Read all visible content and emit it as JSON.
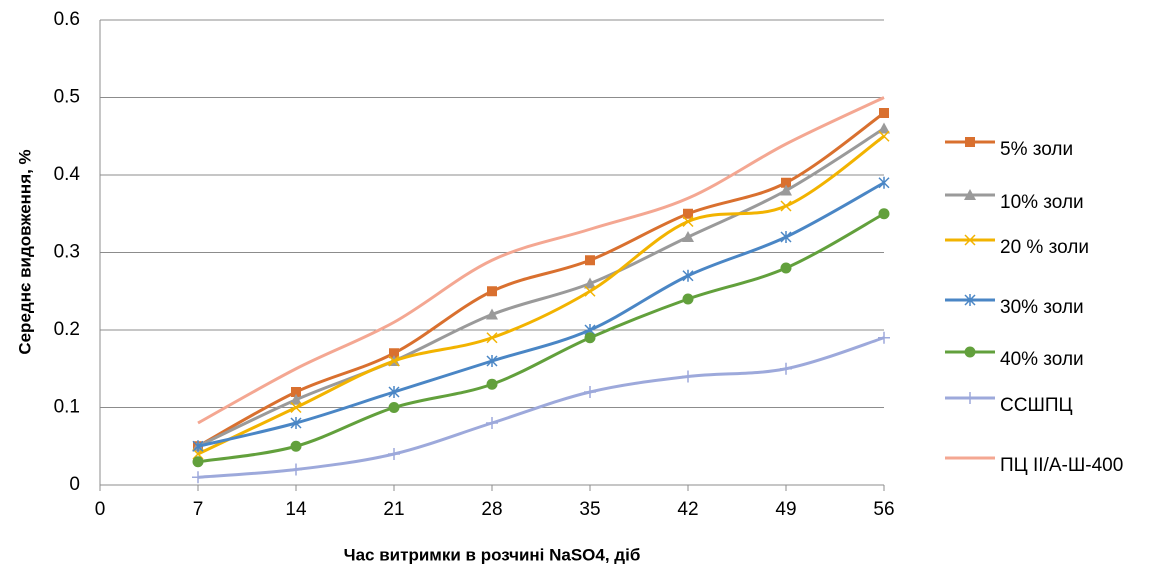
{
  "chart_data": {
    "type": "line",
    "x_label": "Час витримки в розчині NaSO4, діб",
    "y_label": "Середнє видовження, %",
    "x": [
      7,
      14,
      21,
      28,
      35,
      42,
      49,
      56
    ],
    "xlim": [
      0,
      56
    ],
    "xticks": [
      0,
      7,
      14,
      21,
      28,
      35,
      42,
      49,
      56
    ],
    "ylim": [
      0,
      0.6
    ],
    "yticks": [
      0,
      0.1,
      0.2,
      0.3,
      0.4,
      0.5,
      0.6
    ],
    "grid": true,
    "smooth": true,
    "legend": "right",
    "series": [
      {
        "name": "5% золи",
        "color": "#d9702f",
        "marker": "square",
        "values": [
          0.05,
          0.12,
          0.17,
          0.25,
          0.29,
          0.35,
          0.39,
          0.48
        ]
      },
      {
        "name": "10% золи",
        "color": "#9a9a9a",
        "marker": "triangle",
        "values": [
          0.05,
          0.11,
          0.16,
          0.22,
          0.26,
          0.32,
          0.38,
          0.46
        ]
      },
      {
        "name": "20 % золи",
        "color": "#f2b300",
        "marker": "x",
        "values": [
          0.04,
          0.1,
          0.16,
          0.19,
          0.25,
          0.34,
          0.36,
          0.45
        ]
      },
      {
        "name": "30% золи",
        "color": "#4a86c5",
        "marker": "asterisk",
        "values": [
          0.05,
          0.08,
          0.12,
          0.16,
          0.2,
          0.27,
          0.32,
          0.39
        ]
      },
      {
        "name": "40% золи",
        "color": "#62a03c",
        "marker": "circle",
        "values": [
          0.03,
          0.05,
          0.1,
          0.13,
          0.19,
          0.24,
          0.28,
          0.35
        ]
      },
      {
        "name": "ССШПЦ",
        "color": "#9da9db",
        "marker": "plus",
        "values": [
          0.01,
          0.02,
          0.04,
          0.08,
          0.12,
          0.14,
          0.15,
          0.19
        ]
      },
      {
        "name": "ПЦ II/А-Ш-400",
        "color": "#f4a792",
        "marker": "none",
        "values": [
          0.08,
          0.15,
          0.21,
          0.29,
          0.33,
          0.37,
          0.44,
          0.5
        ]
      }
    ]
  }
}
